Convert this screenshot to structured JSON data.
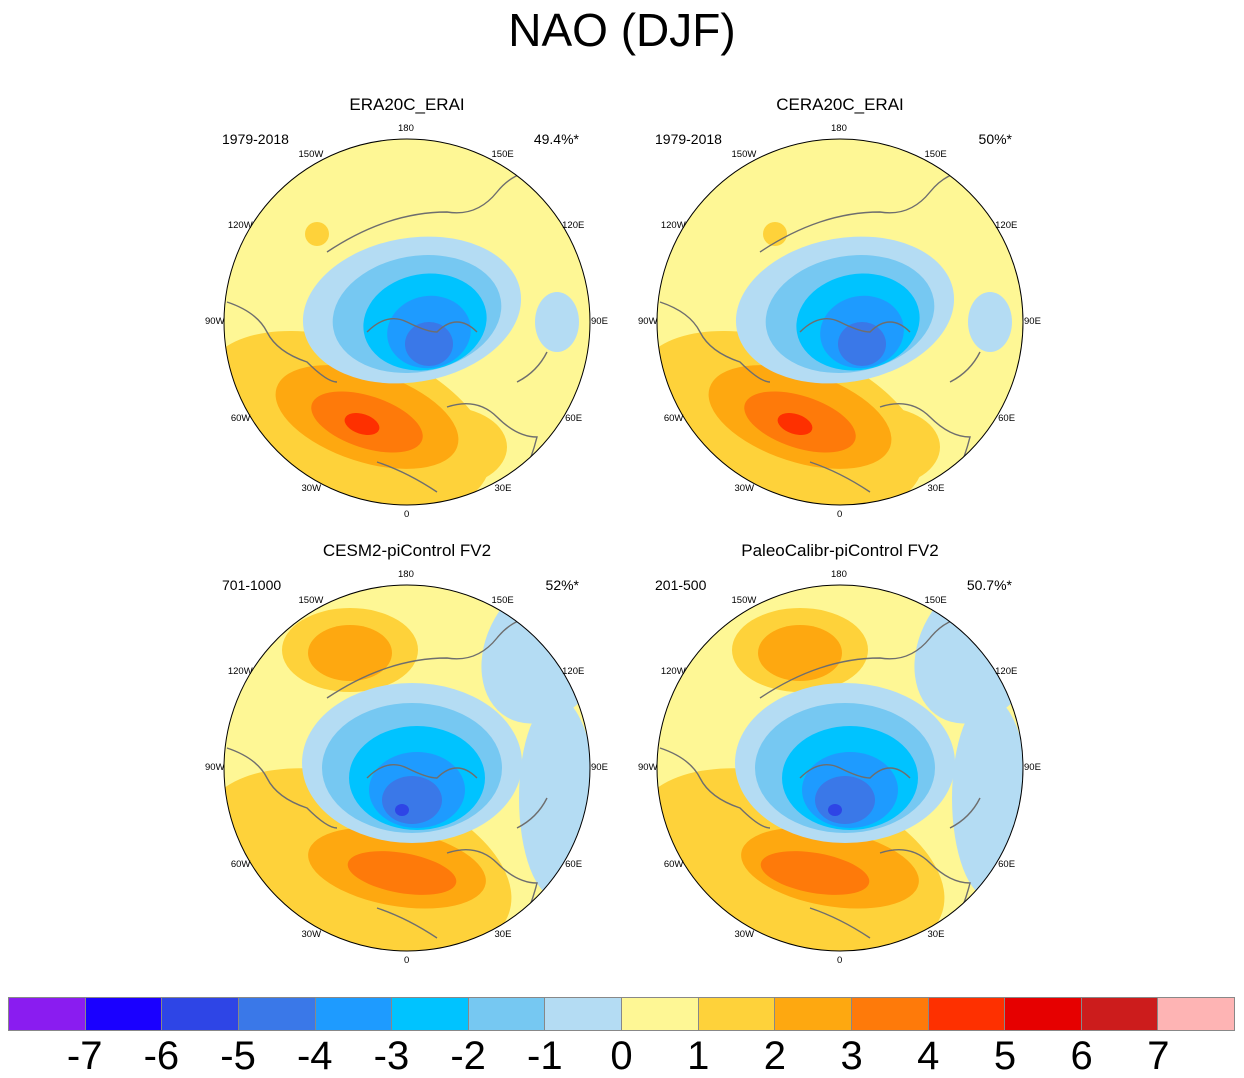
{
  "title": "NAO (DJF)",
  "panels": [
    {
      "name": "ERA20C_ERAI",
      "period": "1979-2018",
      "variance": "49.4%*"
    },
    {
      "name": "CERA20C_ERAI",
      "period": "1979-2018",
      "variance": "50%*"
    },
    {
      "name": "CESM2-piControl FV2",
      "period": "701-1000",
      "variance": "52%*"
    },
    {
      "name": "PaleoCalibr-piControl FV2",
      "period": "201-500",
      "variance": "50.7%*"
    }
  ],
  "longitude_labels": [
    "180",
    "150E",
    "120E",
    "90E",
    "60E",
    "30E",
    "0",
    "30W",
    "60W",
    "90W",
    "120W",
    "150W"
  ],
  "colorbar": {
    "labels": [
      "-7",
      "-6",
      "-5",
      "-4",
      "-3",
      "-2",
      "-1",
      "0",
      "1",
      "2",
      "3",
      "4",
      "5",
      "6",
      "7"
    ],
    "colors": [
      "#8a1cf0",
      "#1a00ff",
      "#2e45e6",
      "#3a78e8",
      "#1e9bff",
      "#00c3ff",
      "#76c8f2",
      "#b4dcf3",
      "#fef795",
      "#fed23a",
      "#fea810",
      "#fe7a0a",
      "#fe3000",
      "#e60000",
      "#cc1c1c",
      "#feb4b4"
    ]
  },
  "map_colors": {
    "-5": "#2e45e6",
    "-4": "#3a78e8",
    "-3": "#1e9bff",
    "-2": "#00c3ff",
    "-1": "#76c8f2",
    "0": "#b4dcf3",
    "1": "#fef795",
    "2": "#fed23a",
    "3": "#fea810",
    "4": "#fe7a0a",
    "5": "#fe3000"
  }
}
